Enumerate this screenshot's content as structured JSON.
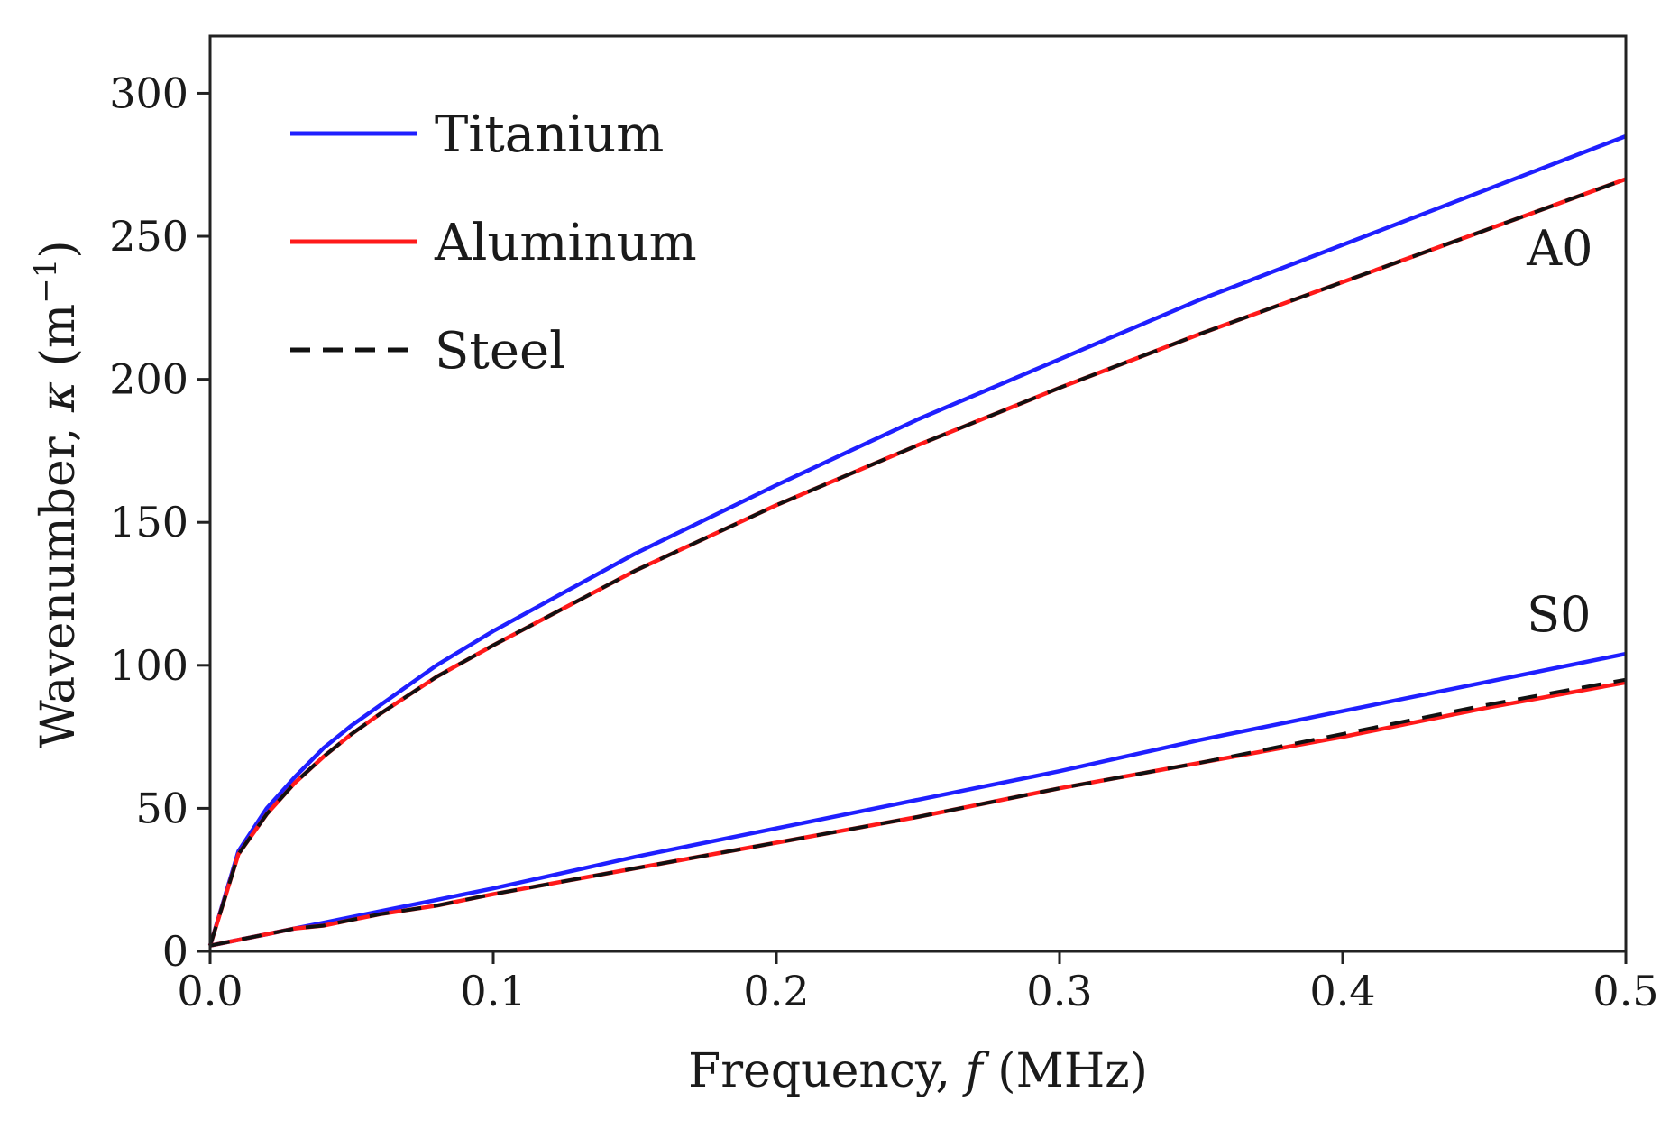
{
  "chart_data": {
    "type": "line",
    "title": "",
    "xlabel": "Frequency, f (MHz)",
    "xlabel_parts": {
      "pre": "Frequency, ",
      "var": "f",
      "post": " (MHz)"
    },
    "ylabel": "Wavenumber, κ (m⁻¹)",
    "ylabel_parts": {
      "pre": "Wavenumber, ",
      "var": "κ",
      "post": " (m",
      "sup": "−1",
      "end": ")"
    },
    "xlim": [
      0,
      0.5
    ],
    "ylim": [
      0,
      320
    ],
    "xticks": [
      0.0,
      0.1,
      0.2,
      0.3,
      0.4,
      0.5
    ],
    "xtick_labels": [
      "0.0",
      "0.1",
      "0.2",
      "0.3",
      "0.4",
      "0.5"
    ],
    "yticks": [
      0,
      50,
      100,
      150,
      200,
      250,
      300
    ],
    "ytick_labels": [
      "0",
      "50",
      "100",
      "150",
      "200",
      "250",
      "300"
    ],
    "grid": false,
    "legend_position": "top-left",
    "legend": [
      {
        "name": "Titanium",
        "color": "#1f1fff",
        "dash": "solid"
      },
      {
        "name": "Aluminum",
        "color": "#ff1a1a",
        "dash": "solid"
      },
      {
        "name": "Steel",
        "color": "#111111",
        "dash": "dashed"
      }
    ],
    "annotations": [
      {
        "text": "A0",
        "x": 0.465,
        "y": 240
      },
      {
        "text": "S0",
        "x": 0.465,
        "y": 112
      }
    ],
    "x": [
      0.0,
      0.01,
      0.02,
      0.03,
      0.04,
      0.05,
      0.06,
      0.08,
      0.1,
      0.15,
      0.2,
      0.25,
      0.3,
      0.35,
      0.4,
      0.45,
      0.5
    ],
    "series": [
      {
        "name": "Titanium A0",
        "legend": "Titanium",
        "mode": "A0",
        "color": "#1f1fff",
        "dash": "solid",
        "values": [
          2,
          35,
          50,
          61,
          71,
          79,
          86,
          100,
          112,
          139,
          163,
          186,
          207,
          228,
          247,
          266,
          285
        ]
      },
      {
        "name": "Aluminum A0",
        "legend": "Aluminum",
        "mode": "A0",
        "color": "#ff1a1a",
        "dash": "solid",
        "values": [
          2,
          34,
          48,
          59,
          68,
          76,
          83,
          96,
          107,
          133,
          156,
          177,
          197,
          216,
          234,
          252,
          270
        ]
      },
      {
        "name": "Steel A0",
        "legend": "Steel",
        "mode": "A0",
        "color": "#111111",
        "dash": "dashed",
        "values": [
          2,
          34,
          48,
          59,
          68,
          76,
          83,
          96,
          107,
          133,
          156,
          177,
          197,
          216,
          234,
          252,
          270
        ]
      },
      {
        "name": "Titanium S0",
        "legend": "Titanium",
        "mode": "S0",
        "color": "#1f1fff",
        "dash": "solid",
        "values": [
          2,
          4,
          6,
          8,
          10,
          12,
          14,
          18,
          22,
          33,
          43,
          53,
          63,
          74,
          84,
          94,
          104
        ]
      },
      {
        "name": "Aluminum S0",
        "legend": "Aluminum",
        "mode": "S0",
        "color": "#ff1a1a",
        "dash": "solid",
        "values": [
          2,
          4,
          6,
          8,
          9,
          11,
          13,
          16,
          20,
          29,
          38,
          47,
          57,
          66,
          75,
          85,
          94
        ]
      },
      {
        "name": "Steel S0",
        "legend": "Steel",
        "mode": "S0",
        "color": "#111111",
        "dash": "dashed",
        "values": [
          2,
          4,
          6,
          8,
          9,
          11,
          13,
          16,
          20,
          29,
          38,
          47,
          57,
          66,
          76,
          86,
          95
        ]
      }
    ]
  }
}
